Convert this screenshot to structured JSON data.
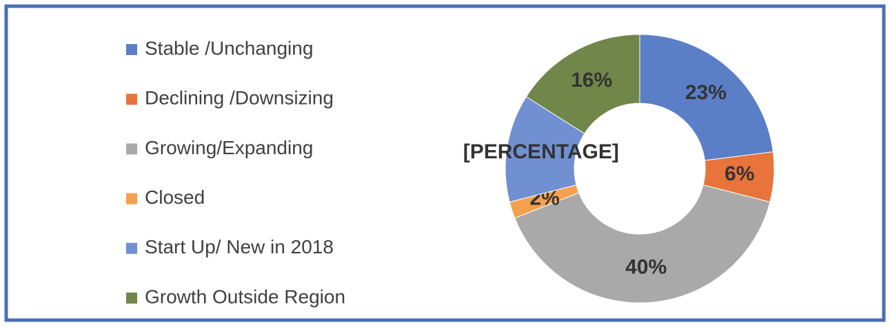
{
  "chart_data": {
    "type": "donut",
    "categories": [
      "Stable /Unchanging",
      "Declining /Downsizing",
      "Growing/Expanding",
      "Closed",
      "Start Up/ New in 2018",
      "Growth Outside Region"
    ],
    "values": [
      23,
      6,
      40,
      2,
      13,
      16
    ],
    "value_labels": [
      "23%",
      "6%",
      "40%",
      "2%",
      "[PERCENTAGE]",
      "16%"
    ],
    "colors": [
      "#5b7fc7",
      "#e8743b",
      "#a9a9a9",
      "#f5a04e",
      "#7190d2",
      "#71874a"
    ],
    "legend": "left"
  }
}
